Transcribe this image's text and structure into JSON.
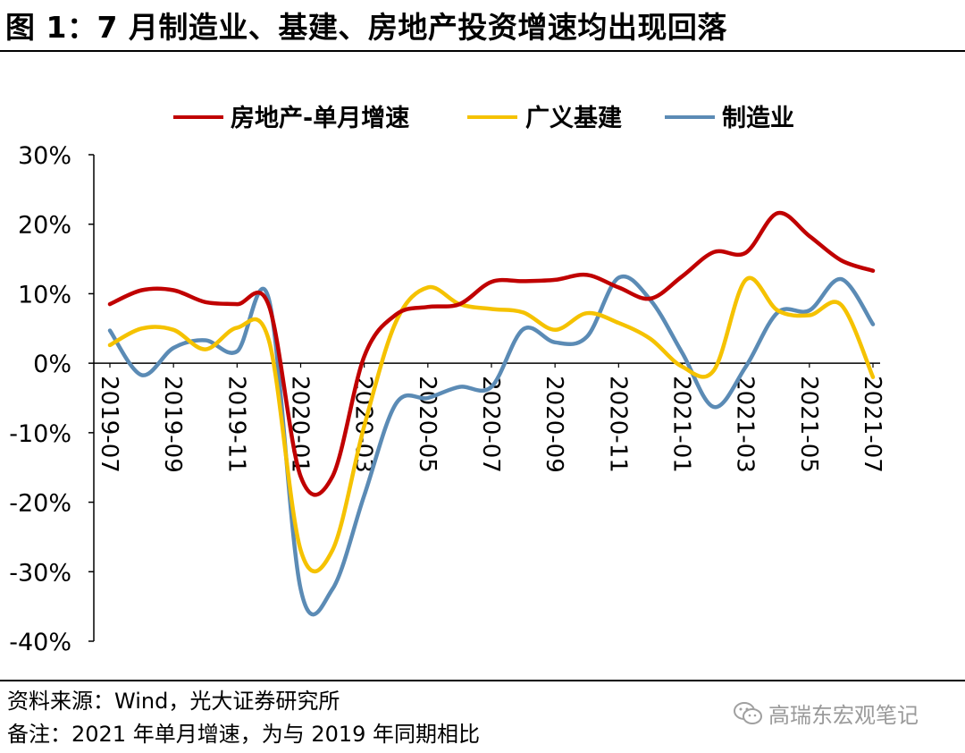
{
  "header": {
    "title": "图 1：7 月制造业、基建、房地产投资增速均出现回落"
  },
  "chart_data": {
    "type": "line",
    "title": "图 1：7 月制造业、基建、房地产投资增速均出现回落",
    "xlabel": "",
    "ylabel": "",
    "ylim": [
      -40,
      30
    ],
    "yticks": [
      "30%",
      "20%",
      "10%",
      "0%",
      "-10%",
      "-20%",
      "-30%",
      "-40%"
    ],
    "ytick_values": [
      30,
      20,
      10,
      0,
      -10,
      -20,
      -30,
      -40
    ],
    "x": [
      "2019-07",
      "2019-08",
      "2019-09",
      "2019-10",
      "2019-11",
      "2019-12",
      "2020-01",
      "2020-02",
      "2020-03",
      "2020-04",
      "2020-05",
      "2020-06",
      "2020-07",
      "2020-08",
      "2020-09",
      "2020-10",
      "2020-11",
      "2020-12",
      "2021-01",
      "2021-02",
      "2021-03",
      "2021-04",
      "2021-05",
      "2021-06",
      "2021-07"
    ],
    "xtick_labels": [
      "2019-07",
      "2019-09",
      "2019-11",
      "2020-01",
      "2020-03",
      "2020-05",
      "2020-07",
      "2020-09",
      "2020-11",
      "2021-01",
      "2021-03",
      "2021-05",
      "2021-07"
    ],
    "legend_position": "top",
    "grid": false,
    "series": [
      {
        "name": "房地产-单月增速",
        "color": "#c00000",
        "values": [
          8.5,
          10.5,
          10.5,
          8.8,
          8.5,
          8.3,
          -16.3,
          -16.3,
          1.0,
          7.0,
          8.1,
          8.5,
          11.7,
          11.8,
          12.0,
          12.7,
          10.9,
          9.3,
          12.5,
          16.0,
          15.9,
          21.6,
          18.3,
          14.8,
          13.3
        ]
      },
      {
        "name": "广义基建",
        "color": "#f5c200",
        "values": [
          2.6,
          5.0,
          4.8,
          2.0,
          5.1,
          3.3,
          -26.9,
          -26.9,
          -9.0,
          6.0,
          10.9,
          8.5,
          7.8,
          7.3,
          4.8,
          7.2,
          5.8,
          3.5,
          -0.5,
          -1.0,
          12.0,
          7.6,
          6.9,
          8.4,
          -2.0
        ]
      },
      {
        "name": "制造业",
        "color": "#5b8bb5",
        "values": [
          4.7,
          -1.7,
          2.2,
          3.3,
          1.7,
          9.2,
          -32.5,
          -32.5,
          -19.0,
          -5.8,
          -5.0,
          -3.4,
          -3.4,
          4.9,
          3.0,
          3.8,
          12.3,
          9.1,
          1.5,
          -6.3,
          -0.5,
          7.3,
          7.6,
          12.1,
          5.6
        ]
      }
    ]
  },
  "footer": {
    "source": "资料来源：Wind，光大证券研究所",
    "note": "备注：2021 年单月增速，为与 2019 年同期相比",
    "watermark": "高瑞东宏观笔记"
  }
}
